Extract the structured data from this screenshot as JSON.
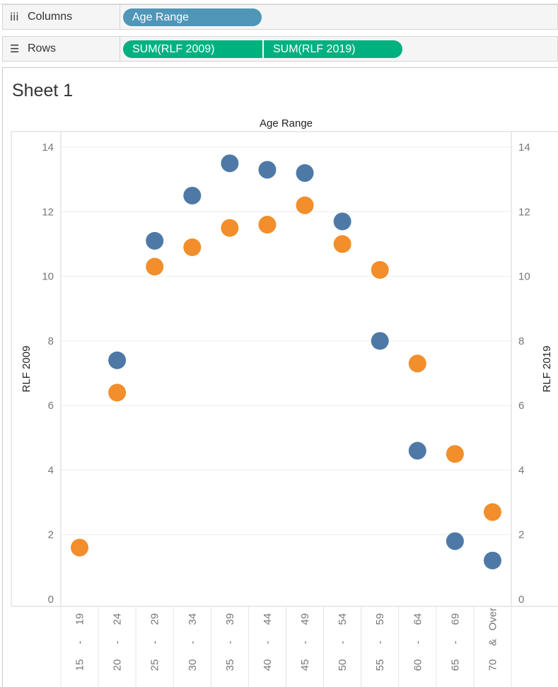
{
  "shelves": {
    "columns": {
      "label": "Columns",
      "icon": "iii",
      "pill": "Age Range"
    },
    "rows": {
      "label": "Rows",
      "icon": "☰",
      "pills": [
        "SUM(RLF 2009)",
        "SUM(RLF 2019)"
      ]
    }
  },
  "sheet": {
    "title": "Sheet 1"
  },
  "colors": {
    "rlf2009": "#4e79a7",
    "rlf2019": "#f28e2b",
    "dim_pill": "#4f96b8",
    "measure_pill": "#00b180"
  },
  "chart_data": {
    "type": "scatter",
    "title": "Age Range",
    "categories": [
      "15 - 19",
      "20 - 24",
      "25 - 29",
      "30 - 34",
      "35 - 39",
      "40 - 44",
      "45 - 49",
      "50 - 54",
      "55 - 59",
      "60 - 64",
      "65 - 69",
      "70 & Over"
    ],
    "category_labels": [
      [
        "15",
        "-",
        "19"
      ],
      [
        "20",
        "-",
        "24"
      ],
      [
        "25",
        "-",
        "29"
      ],
      [
        "30",
        "-",
        "34"
      ],
      [
        "35",
        "-",
        "39"
      ],
      [
        "40",
        "-",
        "44"
      ],
      [
        "45",
        "-",
        "49"
      ],
      [
        "50",
        "-",
        "54"
      ],
      [
        "55",
        "-",
        "59"
      ],
      [
        "60",
        "-",
        "64"
      ],
      [
        "65",
        "-",
        "69"
      ],
      [
        "70",
        "&",
        "Over"
      ]
    ],
    "series": [
      {
        "name": "RLF 2009",
        "color": "#4e79a7",
        "values": [
          null,
          7.4,
          11.1,
          12.5,
          13.5,
          13.3,
          13.2,
          11.7,
          8.0,
          4.6,
          1.8,
          1.2
        ]
      },
      {
        "name": "RLF 2019",
        "color": "#f28e2b",
        "values": [
          1.6,
          6.4,
          10.3,
          10.9,
          11.5,
          11.6,
          12.2,
          11.0,
          10.2,
          7.3,
          4.5,
          2.7
        ]
      }
    ],
    "ylabel_left": "RLF 2009",
    "ylabel_right": "RLF 2019",
    "ylim": [
      0,
      14
    ],
    "yticks": [
      0,
      2,
      4,
      6,
      8,
      10,
      12,
      14
    ],
    "grid": true
  }
}
